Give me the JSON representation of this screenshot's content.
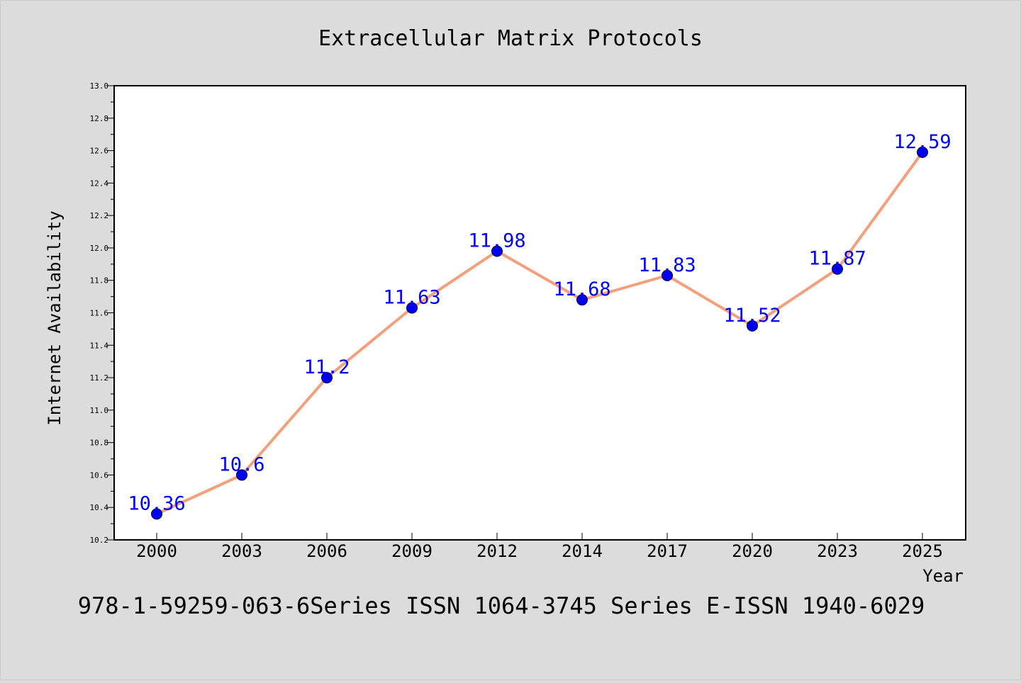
{
  "chart_data": {
    "type": "line",
    "title": "Extracellular Matrix Protocols",
    "xlabel": "Year",
    "ylabel": "Internet Availability",
    "categories": [
      "2000",
      "2003",
      "2006",
      "2009",
      "2012",
      "2014",
      "2017",
      "2020",
      "2023",
      "2025"
    ],
    "series": [
      {
        "values": [
          10.36,
          10.6,
          11.2,
          11.63,
          11.98,
          11.68,
          11.83,
          11.52,
          11.87,
          12.59
        ],
        "labels": [
          "10.36",
          "10.6",
          "11.2",
          "11.63",
          "11.98",
          "11.68",
          "11.83",
          "11.52",
          "11.87",
          "12.59"
        ],
        "line_color": "#f4a07c",
        "marker_color": "#0000ee",
        "label_color": "#0000ff"
      }
    ],
    "ylim": [
      10.2,
      13.0
    ],
    "yticks": [
      "10.2",
      "10.4",
      "10.6",
      "10.8",
      "11.0",
      "11.2",
      "11.4",
      "11.6",
      "11.8",
      "12.0",
      "12.2",
      "12.4",
      "12.6",
      "12.8",
      "13.0"
    ],
    "grid": false,
    "footer": "978-1-59259-063-6Series ISSN 1064-3745 Series E-ISSN 1940-6029"
  }
}
